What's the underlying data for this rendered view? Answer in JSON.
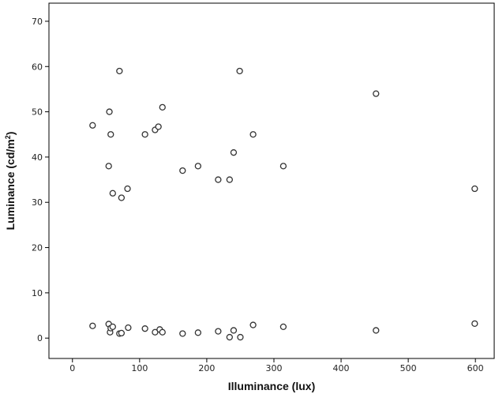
{
  "chart_data": {
    "type": "scatter",
    "title": "",
    "xlabel": "Illuminance (lux)",
    "ylabel_main": "Luminance (cd/m",
    "ylabel_sup": "2",
    "ylabel_close": ")",
    "xlim": [
      -35,
      628
    ],
    "ylim": [
      -4.5,
      74
    ],
    "xticks": [
      0,
      100,
      200,
      300,
      400,
      500,
      600
    ],
    "yticks": [
      0,
      10,
      20,
      30,
      40,
      50,
      60,
      70
    ],
    "grid": false,
    "legend": "none",
    "marker": "hollow-circle",
    "points": [
      {
        "x": 30,
        "y": 47
      },
      {
        "x": 30,
        "y": 2.7
      },
      {
        "x": 54,
        "y": 38
      },
      {
        "x": 55,
        "y": 50
      },
      {
        "x": 54,
        "y": 3.1
      },
      {
        "x": 56,
        "y": 1.3
      },
      {
        "x": 57,
        "y": 2.2
      },
      {
        "x": 57,
        "y": 45
      },
      {
        "x": 60,
        "y": 32
      },
      {
        "x": 60,
        "y": 2.5
      },
      {
        "x": 70,
        "y": 59
      },
      {
        "x": 70,
        "y": 1.0
      },
      {
        "x": 73,
        "y": 31
      },
      {
        "x": 73,
        "y": 1.1
      },
      {
        "x": 82,
        "y": 33
      },
      {
        "x": 83,
        "y": 2.3
      },
      {
        "x": 108,
        "y": 45
      },
      {
        "x": 108,
        "y": 2.1
      },
      {
        "x": 123,
        "y": 46
      },
      {
        "x": 123,
        "y": 1.3
      },
      {
        "x": 128,
        "y": 46.7
      },
      {
        "x": 130,
        "y": 1.9
      },
      {
        "x": 134,
        "y": 51
      },
      {
        "x": 134,
        "y": 1.3
      },
      {
        "x": 164,
        "y": 37
      },
      {
        "x": 164,
        "y": 1.0
      },
      {
        "x": 187,
        "y": 38
      },
      {
        "x": 187,
        "y": 1.2
      },
      {
        "x": 217,
        "y": 35
      },
      {
        "x": 217,
        "y": 1.5
      },
      {
        "x": 234,
        "y": 35
      },
      {
        "x": 234,
        "y": 0.2
      },
      {
        "x": 240,
        "y": 41
      },
      {
        "x": 240,
        "y": 1.7
      },
      {
        "x": 249,
        "y": 59
      },
      {
        "x": 250,
        "y": 0.2
      },
      {
        "x": 269,
        "y": 45
      },
      {
        "x": 269,
        "y": 2.9
      },
      {
        "x": 314,
        "y": 38
      },
      {
        "x": 314,
        "y": 2.5
      },
      {
        "x": 452,
        "y": 54
      },
      {
        "x": 452,
        "y": 1.7
      },
      {
        "x": 599,
        "y": 33
      },
      {
        "x": 599,
        "y": 3.2
      }
    ],
    "colors": {
      "frame": "#000000",
      "marker_stroke": "#333333",
      "marker_fill": "#ffffff",
      "text": "#111111"
    }
  }
}
